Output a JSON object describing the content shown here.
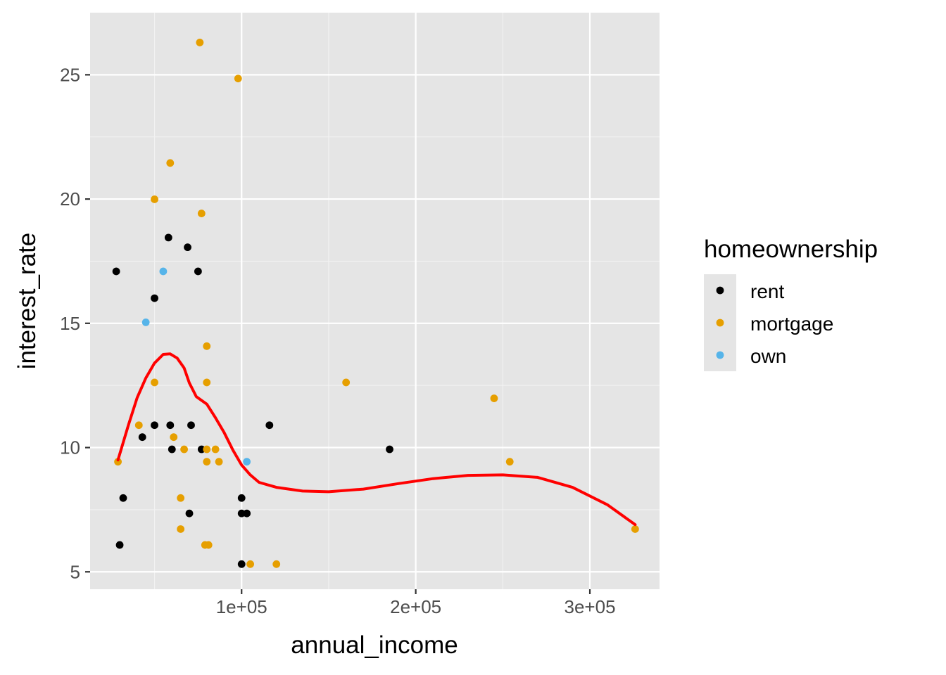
{
  "chart_data": {
    "type": "scatter",
    "title": "",
    "xlabel": "annual_income",
    "ylabel": "interest_rate",
    "xlim": [
      13000,
      340000
    ],
    "ylim": [
      4.3,
      27.5
    ],
    "x_ticks": [
      100000,
      200000,
      300000
    ],
    "x_tick_labels": [
      "1e+05",
      "2e+05",
      "3e+05"
    ],
    "y_ticks": [
      5,
      10,
      15,
      20,
      25
    ],
    "y_tick_labels": [
      "5",
      "10",
      "15",
      "20",
      "25"
    ],
    "grid": true,
    "panel_background": "#e5e5e5",
    "legend": {
      "title": "homeownership",
      "position": "right",
      "entries": [
        {
          "label": "rent",
          "color": "#000000"
        },
        {
          "label": "mortgage",
          "color": "#e69f00"
        },
        {
          "label": "own",
          "color": "#56b4e9"
        }
      ]
    },
    "series": [
      {
        "name": "rent",
        "color": "#000000",
        "points": [
          [
            28000,
            17.09
          ],
          [
            30000,
            6.08
          ],
          [
            32000,
            7.97
          ],
          [
            43000,
            10.42
          ],
          [
            50000,
            10.9
          ],
          [
            50000,
            16.01
          ],
          [
            58000,
            18.45
          ],
          [
            59000,
            10.9
          ],
          [
            60000,
            9.93
          ],
          [
            69000,
            18.06
          ],
          [
            70000,
            7.35
          ],
          [
            71000,
            10.9
          ],
          [
            75000,
            17.09
          ],
          [
            77000,
            9.93
          ],
          [
            100000,
            7.97
          ],
          [
            100000,
            7.35
          ],
          [
            100000,
            5.31
          ],
          [
            103000,
            7.35
          ],
          [
            116000,
            10.9
          ],
          [
            185000,
            9.93
          ]
        ]
      },
      {
        "name": "mortgage",
        "color": "#e69f00",
        "points": [
          [
            29000,
            9.43
          ],
          [
            41000,
            10.9
          ],
          [
            50000,
            19.99
          ],
          [
            50000,
            12.62
          ],
          [
            59000,
            21.45
          ],
          [
            61000,
            10.42
          ],
          [
            65000,
            7.97
          ],
          [
            65000,
            6.72
          ],
          [
            67000,
            9.93
          ],
          [
            76000,
            26.3
          ],
          [
            77000,
            19.42
          ],
          [
            79000,
            6.08
          ],
          [
            81000,
            6.08
          ],
          [
            80000,
            14.08
          ],
          [
            80000,
            12.62
          ],
          [
            80000,
            9.93
          ],
          [
            80000,
            9.43
          ],
          [
            85000,
            9.93
          ],
          [
            87000,
            9.43
          ],
          [
            98000,
            24.85
          ],
          [
            105000,
            5.31
          ],
          [
            120000,
            5.31
          ],
          [
            160000,
            12.62
          ],
          [
            245000,
            11.98
          ],
          [
            254000,
            9.43
          ],
          [
            326000,
            6.72
          ]
        ]
      },
      {
        "name": "own",
        "color": "#56b4e9",
        "points": [
          [
            45000,
            15.04
          ],
          [
            55000,
            17.09
          ],
          [
            103000,
            9.43
          ]
        ]
      }
    ],
    "smooth_line": {
      "color": "#ff0000",
      "points": [
        [
          29000,
          9.5
        ],
        [
          35000,
          10.9
        ],
        [
          40000,
          12.0
        ],
        [
          45000,
          12.8
        ],
        [
          50000,
          13.4
        ],
        [
          55000,
          13.75
        ],
        [
          59000,
          13.77
        ],
        [
          63000,
          13.6
        ],
        [
          67000,
          13.2
        ],
        [
          70000,
          12.6
        ],
        [
          74000,
          12.05
        ],
        [
          80000,
          11.75
        ],
        [
          85000,
          11.2
        ],
        [
          90000,
          10.6
        ],
        [
          95000,
          9.9
        ],
        [
          100000,
          9.3
        ],
        [
          105000,
          8.9
        ],
        [
          110000,
          8.6
        ],
        [
          120000,
          8.4
        ],
        [
          135000,
          8.25
        ],
        [
          150000,
          8.22
        ],
        [
          170000,
          8.33
        ],
        [
          190000,
          8.55
        ],
        [
          210000,
          8.75
        ],
        [
          230000,
          8.88
        ],
        [
          250000,
          8.9
        ],
        [
          270000,
          8.8
        ],
        [
          290000,
          8.4
        ],
        [
          310000,
          7.7
        ],
        [
          326000,
          6.9
        ]
      ]
    }
  }
}
